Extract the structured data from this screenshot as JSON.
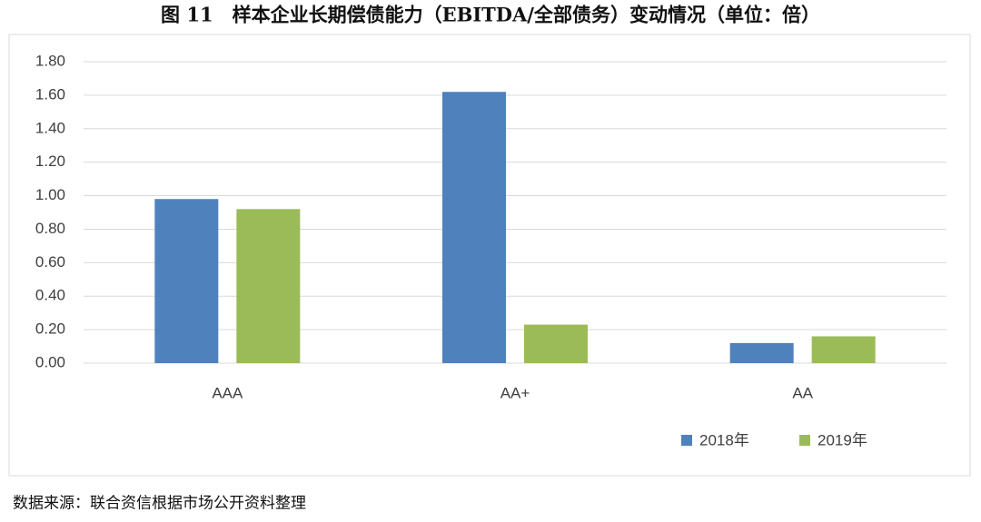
{
  "chart_data": {
    "type": "bar",
    "title": "图 11　样本企业长期偿债能力（EBITDA/全部债务）变动情况（单位：倍）",
    "source": "数据来源：联合资信根据市场公开资料整理",
    "categories": [
      "AAA",
      "AA+",
      "AA"
    ],
    "series": [
      {
        "name": "2018年",
        "color": "#4f81bd",
        "values": [
          0.98,
          1.62,
          0.12
        ]
      },
      {
        "name": "2019年",
        "color": "#9bbb59",
        "values": [
          0.92,
          0.23,
          0.16
        ]
      }
    ],
    "ylim": [
      0,
      1.8
    ],
    "yticks": [
      {
        "value": 0,
        "label": "0.00"
      },
      {
        "value": 0.2,
        "label": "0.20"
      },
      {
        "value": 0.4,
        "label": "0.40"
      },
      {
        "value": 0.6,
        "label": "0.60"
      },
      {
        "value": 0.8,
        "label": "0.80"
      },
      {
        "value": 1,
        "label": "1.00"
      },
      {
        "value": 1.2,
        "label": "1.20"
      },
      {
        "value": 1.4,
        "label": "1.40"
      },
      {
        "value": 1.6,
        "label": "1.60"
      },
      {
        "value": 1.8,
        "label": "1.80"
      }
    ],
    "grid": true,
    "legend": "bottom-right"
  }
}
